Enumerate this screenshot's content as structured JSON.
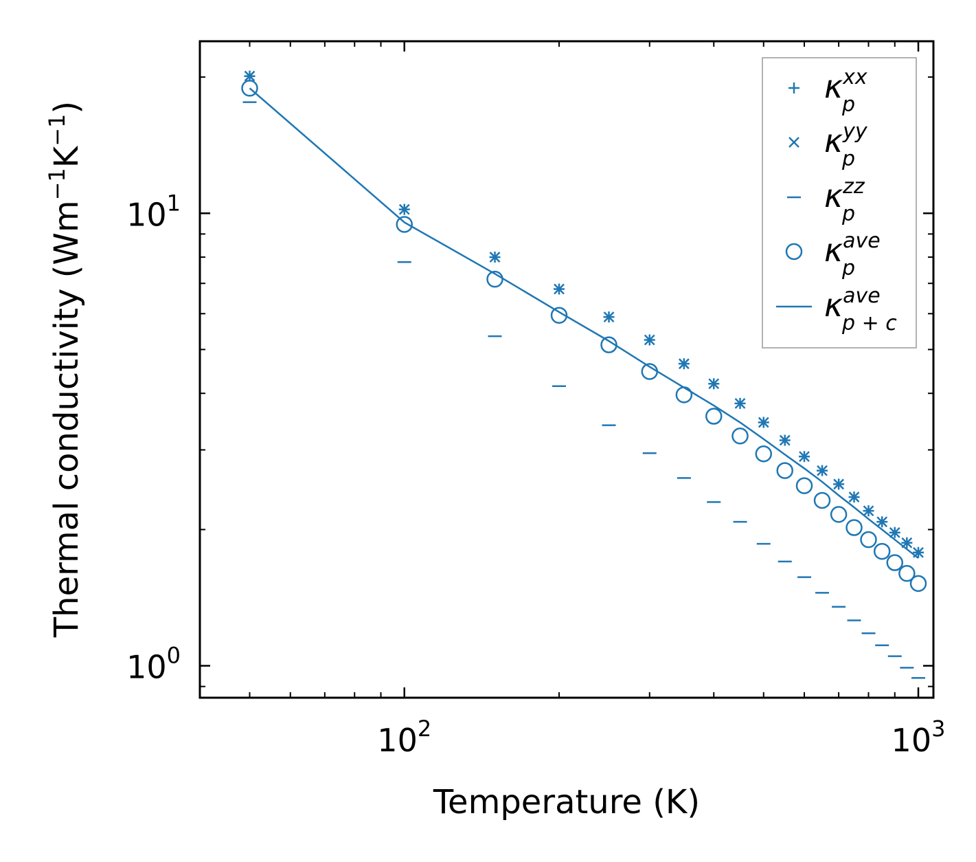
{
  "colors": {
    "series": "#1f77b4",
    "axis": "#000000",
    "legend_border": "#999999",
    "background": "#ffffff"
  },
  "chart_data": {
    "type": "scatter",
    "xscale": "log",
    "yscale": "log",
    "xlabel": "Temperature (K)",
    "ylabel": {
      "main": "Thermal conductivity (Wm",
      "sup1": "−1",
      "mid": "K",
      "sup2": "−1",
      "end": ")"
    },
    "xlim": [
      40,
      1070
    ],
    "ylim": [
      0.85,
      24
    ],
    "xticks": [
      {
        "value": 100,
        "base": "10",
        "exp": "2"
      },
      {
        "value": 1000,
        "base": "10",
        "exp": "3"
      }
    ],
    "yticks": [
      {
        "value": 1,
        "base": "10",
        "exp": "0"
      },
      {
        "value": 10,
        "base": "10",
        "exp": "1"
      }
    ],
    "legend_position": "top-right",
    "x": [
      50,
      100,
      150,
      200,
      250,
      300,
      350,
      400,
      450,
      500,
      550,
      600,
      650,
      700,
      750,
      800,
      850,
      900,
      950,
      1000
    ],
    "series": [
      {
        "name": "kxx",
        "legend": {
          "base": "κ",
          "sub": "p",
          "sup": "xx"
        },
        "marker": "plus",
        "values": [
          20.1,
          10.2,
          8.0,
          6.8,
          5.9,
          5.25,
          4.65,
          4.2,
          3.8,
          3.45,
          3.15,
          2.9,
          2.7,
          2.52,
          2.36,
          2.2,
          2.08,
          1.97,
          1.87,
          1.78
        ]
      },
      {
        "name": "kyy",
        "legend": {
          "base": "κ",
          "sub": "p",
          "sup": "yy"
        },
        "marker": "x",
        "values": [
          20.1,
          10.2,
          8.0,
          6.8,
          5.9,
          5.25,
          4.65,
          4.2,
          3.8,
          3.45,
          3.15,
          2.9,
          2.7,
          2.52,
          2.36,
          2.2,
          2.08,
          1.97,
          1.87,
          1.78
        ]
      },
      {
        "name": "kzz",
        "legend": {
          "base": "κ",
          "sub": "p",
          "sup": "zz"
        },
        "marker": "hline",
        "values": [
          17.6,
          7.8,
          5.35,
          4.15,
          3.4,
          2.95,
          2.6,
          2.3,
          2.08,
          1.86,
          1.7,
          1.57,
          1.45,
          1.35,
          1.26,
          1.18,
          1.11,
          1.05,
          0.99,
          0.94
        ]
      },
      {
        "name": "kave",
        "legend": {
          "base": "κ",
          "sub": "p",
          "sup": "ave"
        },
        "marker": "circle",
        "values": [
          18.9,
          9.45,
          7.15,
          5.95,
          5.12,
          4.47,
          3.97,
          3.56,
          3.22,
          2.94,
          2.7,
          2.5,
          2.32,
          2.16,
          2.02,
          1.9,
          1.79,
          1.69,
          1.6,
          1.52
        ]
      },
      {
        "name": "kpc",
        "legend": {
          "base": "κ",
          "sub": "p + c",
          "sup": "ave"
        },
        "marker": "line",
        "values": [
          18.9,
          9.55,
          7.35,
          6.05,
          5.22,
          4.58,
          4.12,
          3.76,
          3.45,
          3.17,
          2.93,
          2.73,
          2.55,
          2.38,
          2.24,
          2.11,
          2.0,
          1.9,
          1.81,
          1.73
        ]
      }
    ]
  }
}
